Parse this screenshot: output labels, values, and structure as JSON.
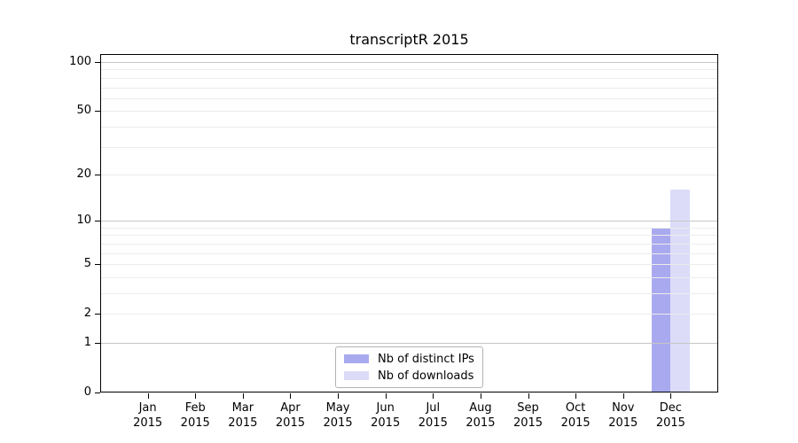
{
  "chart_data": {
    "type": "bar",
    "title": "transcriptR 2015",
    "x_categories_line1": [
      "Jan",
      "Feb",
      "Mar",
      "Apr",
      "May",
      "Jun",
      "Jul",
      "Aug",
      "Sep",
      "Oct",
      "Nov",
      "Dec"
    ],
    "x_categories_line2": [
      "2015",
      "2015",
      "2015",
      "2015",
      "2015",
      "2015",
      "2015",
      "2015",
      "2015",
      "2015",
      "2015",
      "2015"
    ],
    "series": [
      {
        "name": "Nb of distinct IPs",
        "color": "#a9a9f0",
        "values": [
          0,
          0,
          0,
          0,
          0,
          0,
          0,
          0,
          0,
          0,
          0,
          9
        ]
      },
      {
        "name": "Nb of downloads",
        "color": "#dcdcf9",
        "values": [
          0,
          0,
          0,
          0,
          0,
          0,
          0,
          0,
          0,
          0,
          0,
          16
        ]
      }
    ],
    "y_scale": "log1p",
    "y_tick_labels": [
      0,
      1,
      2,
      5,
      10,
      20,
      50,
      100
    ],
    "y_major_gridlines": [
      1,
      10,
      100
    ],
    "y_minor_gridlines": [
      2,
      3,
      4,
      5,
      6,
      7,
      8,
      9,
      20,
      30,
      40,
      50,
      60,
      70,
      80,
      90
    ],
    "ylim_top": 112,
    "grid": true,
    "grid_above_bars": true,
    "legend_position": "lower center",
    "colors": {
      "major_grid": "#c6c6c6",
      "minor_grid": "#ececec",
      "axis": "#000000",
      "background": "#ffffff",
      "legend_border": "#b3b3b3"
    }
  }
}
